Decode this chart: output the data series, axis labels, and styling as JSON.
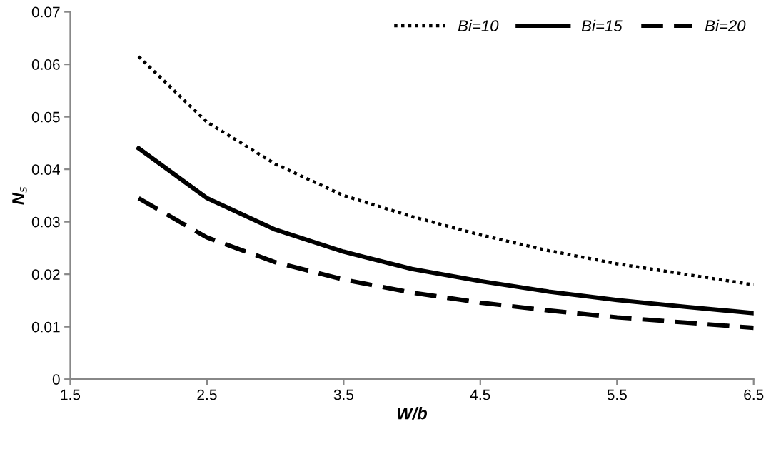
{
  "chart_data": {
    "type": "line",
    "xlabel": "W/b",
    "ylabel": "N$_{s}$",
    "x": [
      2,
      2.5,
      3,
      3.5,
      4,
      4.5,
      5,
      5.5,
      6,
      6.5
    ],
    "series": [
      {
        "name": "Bi=10",
        "color": "#000000",
        "line_style": "dotted",
        "values": [
          0.0615,
          0.049,
          0.041,
          0.035,
          0.031,
          0.0275,
          0.0245,
          0.022,
          0.02,
          0.018
        ]
      },
      {
        "name": "Bi=15",
        "color": "#000000",
        "line_style": "solid",
        "values": [
          0.044,
          0.0345,
          0.0285,
          0.0243,
          0.021,
          0.0187,
          0.0167,
          0.0151,
          0.0138,
          0.0126
        ]
      },
      {
        "name": "Bi=20",
        "color": "#000000",
        "line_style": "dashed",
        "values": [
          0.0345,
          0.027,
          0.0223,
          0.019,
          0.0165,
          0.0146,
          0.0131,
          0.0118,
          0.0108,
          0.0098
        ]
      }
    ],
    "xlim": [
      1.5,
      6.5
    ],
    "xticks": [
      1.5,
      2.5,
      3.5,
      4.5,
      5.5,
      6.5
    ],
    "ylim": [
      0,
      0.07
    ],
    "yticks": [
      0,
      0.01,
      0.02,
      0.03,
      0.04,
      0.05,
      0.06,
      0.07
    ],
    "grid": false,
    "legend": "top right",
    "marker": "none"
  }
}
